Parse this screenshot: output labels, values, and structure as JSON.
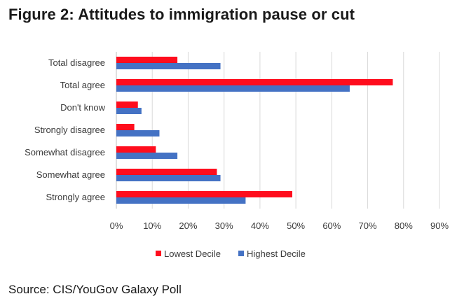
{
  "title": "Figure 2: Attitudes to immigration pause or cut",
  "source": "Source: CIS/YouGov Galaxy Poll",
  "colors": {
    "lowest": "#ff0d1d",
    "highest": "#4472c4",
    "grid": "#d9d9d9",
    "axis": "#bfbfbf"
  },
  "chart_data": {
    "type": "bar",
    "orientation": "horizontal",
    "title": "Figure 2: Attitudes to immigration pause or cut",
    "xlabel": "",
    "ylabel": "",
    "xlim": [
      0,
      90
    ],
    "x_tick_step": 10,
    "tick_suffix": "%",
    "grid": true,
    "legend_position": "bottom",
    "categories": [
      "Total disagree",
      "Total agree",
      "Don't know",
      "Strongly disagree",
      "Somewhat disagree",
      "Somewhat agree",
      "Strongly agree"
    ],
    "series": [
      {
        "name": "Lowest Decile",
        "values": [
          17,
          77,
          6,
          5,
          11,
          28,
          49
        ]
      },
      {
        "name": "Highest Decile",
        "values": [
          29,
          65,
          7,
          12,
          17,
          29,
          36
        ]
      }
    ]
  }
}
